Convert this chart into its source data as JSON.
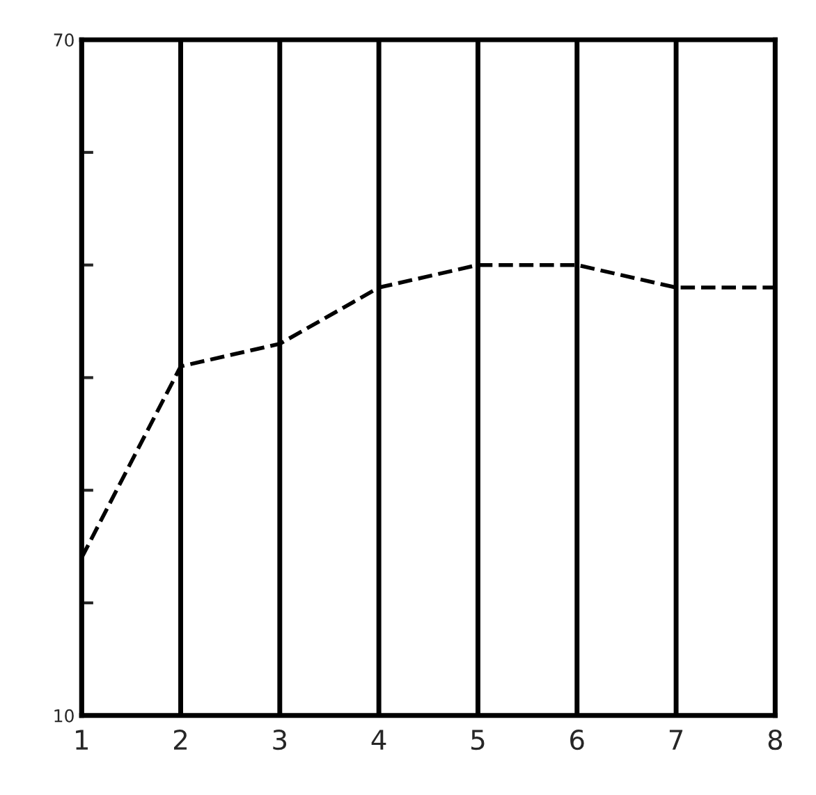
{
  "chart_data": {
    "type": "line",
    "categories": [
      "1",
      "2",
      "3",
      "4",
      "5",
      "6",
      "7",
      "8"
    ],
    "series": [
      {
        "color": "#000000",
        "values": [
          24,
          41,
          43,
          48,
          50,
          50,
          48,
          48
        ]
      }
    ],
    "ylim": [
      10,
      70
    ],
    "yticks": [
      10,
      {
        "value": 20,
        "label": null
      },
      {
        "value": 30,
        "label": null
      },
      {
        "value": 40,
        "label": null
      },
      {
        "value": 50,
        "label": null
      },
      {
        "value": 60,
        "label": null
      },
      70
    ],
    "grid": "x",
    "line_style": "dashed",
    "marker": "none",
    "legend": false
  }
}
